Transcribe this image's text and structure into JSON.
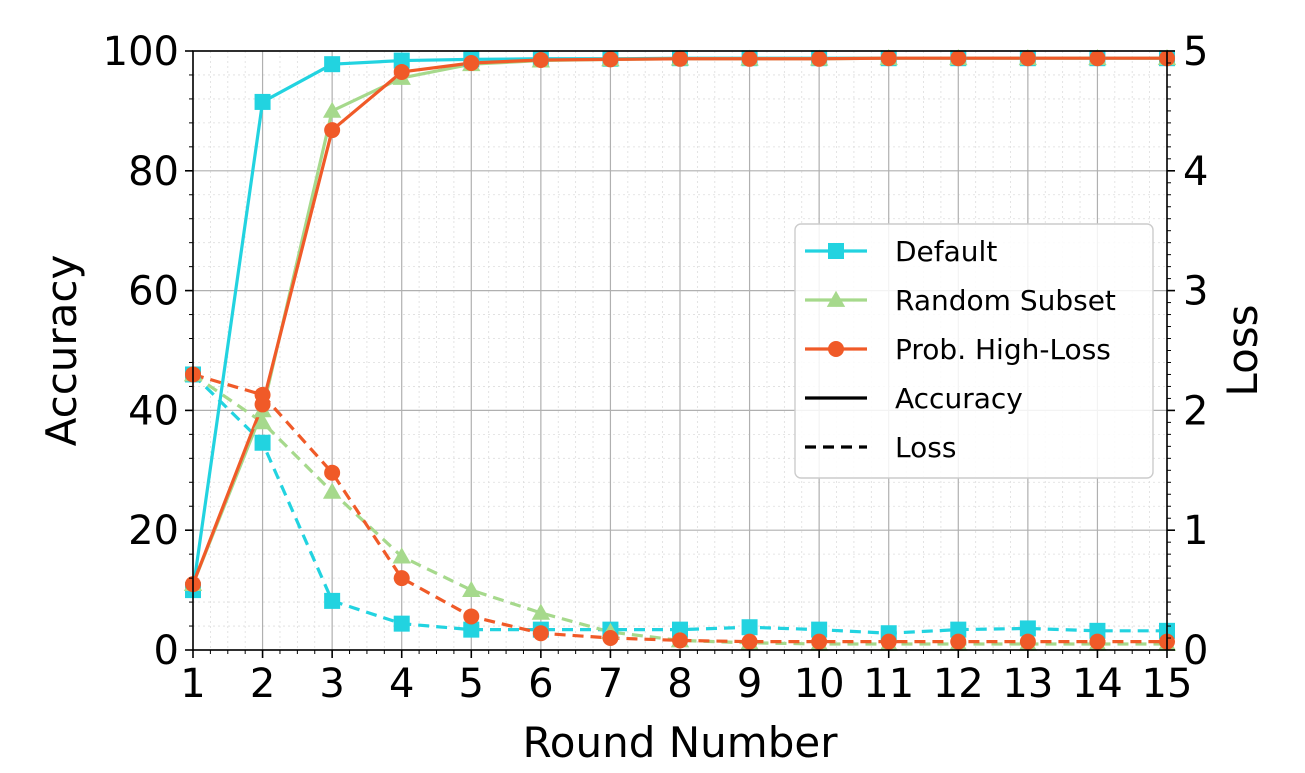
{
  "chart_data": {
    "type": "line",
    "xlabel": "Round Number",
    "ylabel": "Accuracy",
    "y2label": "Loss",
    "x": [
      1,
      2,
      3,
      4,
      5,
      6,
      7,
      8,
      9,
      10,
      11,
      12,
      13,
      14,
      15
    ],
    "xlim": [
      1,
      15
    ],
    "ylim": [
      0,
      100
    ],
    "y2lim": [
      0,
      5
    ],
    "xticks": [
      "1",
      "2",
      "3",
      "4",
      "5",
      "6",
      "7",
      "8",
      "9",
      "10",
      "11",
      "12",
      "13",
      "14",
      "15"
    ],
    "yticks": [
      "0",
      "20",
      "40",
      "60",
      "80",
      "100"
    ],
    "y2ticks": [
      "0",
      "1",
      "2",
      "3",
      "4",
      "5"
    ],
    "grid": true,
    "legend_position": "center-right",
    "series": [
      {
        "name": "Default",
        "color": "#22d3e0",
        "marker": "square",
        "metric": "accuracy",
        "values": [
          10,
          91.5,
          97.8,
          98.4,
          98.6,
          98.7,
          98.7,
          98.8,
          98.8,
          98.8,
          98.8,
          98.8,
          98.8,
          98.8,
          98.8
        ]
      },
      {
        "name": "Random Subset",
        "color": "#a6d98c",
        "marker": "triangle",
        "metric": "accuracy",
        "values": [
          11,
          40,
          90,
          95.5,
          97.8,
          98.4,
          98.6,
          98.7,
          98.7,
          98.7,
          98.8,
          98.8,
          98.8,
          98.8,
          98.8
        ]
      },
      {
        "name": "Prob. High-Loss",
        "color": "#f05a28",
        "marker": "circle",
        "metric": "accuracy",
        "values": [
          11,
          41,
          86.8,
          96.5,
          98,
          98.5,
          98.6,
          98.7,
          98.7,
          98.7,
          98.8,
          98.8,
          98.8,
          98.8,
          98.8
        ]
      },
      {
        "name": "Default",
        "color": "#22d3e0",
        "marker": "square",
        "metric": "loss",
        "values": [
          2.3,
          1.73,
          0.41,
          0.22,
          0.17,
          0.17,
          0.17,
          0.17,
          0.19,
          0.17,
          0.14,
          0.17,
          0.18,
          0.16,
          0.16
        ]
      },
      {
        "name": "Random Subset",
        "color": "#a6d98c",
        "marker": "triangle",
        "metric": "loss",
        "values": [
          2.3,
          1.9,
          1.32,
          0.78,
          0.5,
          0.31,
          0.15,
          0.08,
          0.06,
          0.05,
          0.05,
          0.05,
          0.05,
          0.05,
          0.05
        ]
      },
      {
        "name": "Prob. High-Loss",
        "color": "#f05a28",
        "marker": "circle",
        "metric": "loss",
        "values": [
          2.3,
          2.13,
          1.48,
          0.6,
          0.28,
          0.14,
          0.1,
          0.08,
          0.07,
          0.07,
          0.07,
          0.07,
          0.07,
          0.07,
          0.07
        ]
      }
    ],
    "legend": [
      {
        "label": "Default",
        "color": "#22d3e0",
        "marker": "square",
        "line": "solid"
      },
      {
        "label": "Random Subset",
        "color": "#a6d98c",
        "marker": "triangle",
        "line": "solid"
      },
      {
        "label": "Prob. High-Loss",
        "color": "#f05a28",
        "marker": "circle",
        "line": "solid"
      },
      {
        "label": "Accuracy",
        "color": "#000000",
        "marker": "none",
        "line": "solid"
      },
      {
        "label": "Loss",
        "color": "#000000",
        "marker": "none",
        "line": "dashed"
      }
    ]
  }
}
